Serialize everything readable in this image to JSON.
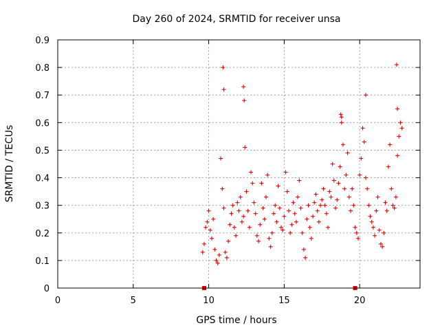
{
  "chart_data": {
    "type": "scatter",
    "title": "Day 260 of 2024, SRMTID for receiver unsa",
    "xlabel": "GPS time / hours",
    "ylabel": "SRMTID / TECUs",
    "xlim": [
      0,
      24
    ],
    "ylim": [
      0,
      0.9
    ],
    "xticks": [
      0,
      5,
      10,
      15,
      20
    ],
    "yticks": [
      0,
      0.1,
      0.2,
      0.3,
      0.4,
      0.5,
      0.6,
      0.7,
      0.8,
      0.9
    ],
    "xtick_labels": [
      "0",
      "5",
      "10",
      "15",
      "20"
    ],
    "ytick_labels": [
      "0",
      "0.1",
      "0.2",
      "0.3",
      "0.4",
      "0.5",
      "0.6",
      "0.7",
      "0.8",
      "0.9"
    ],
    "grid": true,
    "marker": "+",
    "series_color": "#e00000",
    "series": [
      {
        "name": "SRMTID",
        "x": [
          9.6,
          9.7,
          9.8,
          9.9,
          10.0,
          10.1,
          10.2,
          10.3,
          10.4,
          10.5,
          10.6,
          10.7,
          10.8,
          10.9,
          11.0,
          11.1,
          11.2,
          11.3,
          11.4,
          11.5,
          11.6,
          11.7,
          11.8,
          11.9,
          12.0,
          12.1,
          12.2,
          12.3,
          12.4,
          12.5,
          12.6,
          12.7,
          12.8,
          12.9,
          13.0,
          13.1,
          13.2,
          13.3,
          13.4,
          13.5,
          13.6,
          13.7,
          13.8,
          13.9,
          14.0,
          14.1,
          14.2,
          14.3,
          14.4,
          14.5,
          14.6,
          14.7,
          14.8,
          14.9,
          15.0,
          15.1,
          15.2,
          15.3,
          15.4,
          15.5,
          15.6,
          15.7,
          15.8,
          15.9,
          16.0,
          16.1,
          16.2,
          16.3,
          16.4,
          16.5,
          16.6,
          16.7,
          16.8,
          16.9,
          17.0,
          17.1,
          17.2,
          17.3,
          17.4,
          17.5,
          17.6,
          17.7,
          17.8,
          17.9,
          18.0,
          18.1,
          18.2,
          18.3,
          18.4,
          18.5,
          18.6,
          18.7,
          18.8,
          18.9,
          19.0,
          19.1,
          19.2,
          19.3,
          19.4,
          19.5,
          19.6,
          19.7,
          19.8,
          19.9,
          20.0,
          20.1,
          20.2,
          20.3,
          20.4,
          20.5,
          20.6,
          20.7,
          20.8,
          20.9,
          21.0,
          21.1,
          21.2,
          21.3,
          21.4,
          21.5,
          21.6,
          21.7,
          21.8,
          21.9,
          22.0,
          22.1,
          22.2,
          22.3,
          22.4,
          22.5,
          22.6,
          22.7,
          22.8,
          10.95,
          11.0,
          12.3,
          12.35,
          18.75,
          18.8,
          20.4,
          22.45,
          22.5
        ],
        "y": [
          0.13,
          0.16,
          0.22,
          0.24,
          0.28,
          0.21,
          0.18,
          0.25,
          0.14,
          0.1,
          0.09,
          0.12,
          0.47,
          0.36,
          0.29,
          0.13,
          0.11,
          0.17,
          0.23,
          0.27,
          0.3,
          0.22,
          0.19,
          0.31,
          0.28,
          0.33,
          0.24,
          0.26,
          0.51,
          0.35,
          0.28,
          0.22,
          0.42,
          0.38,
          0.31,
          0.27,
          0.19,
          0.17,
          0.23,
          0.38,
          0.29,
          0.25,
          0.33,
          0.41,
          0.18,
          0.15,
          0.2,
          0.27,
          0.3,
          0.24,
          0.37,
          0.29,
          0.22,
          0.21,
          0.26,
          0.42,
          0.35,
          0.28,
          0.2,
          0.23,
          0.31,
          0.27,
          0.24,
          0.33,
          0.39,
          0.29,
          0.2,
          0.14,
          0.11,
          0.25,
          0.3,
          0.22,
          0.18,
          0.26,
          0.31,
          0.34,
          0.28,
          0.24,
          0.3,
          0.32,
          0.36,
          0.3,
          0.27,
          0.22,
          0.35,
          0.33,
          0.45,
          0.39,
          0.29,
          0.32,
          0.38,
          0.44,
          0.62,
          0.52,
          0.36,
          0.41,
          0.49,
          0.33,
          0.28,
          0.36,
          0.3,
          0.22,
          0.2,
          0.18,
          0.41,
          0.47,
          0.58,
          0.53,
          0.4,
          0.36,
          0.3,
          0.26,
          0.24,
          0.22,
          0.19,
          0.28,
          0.33,
          0.21,
          0.16,
          0.15,
          0.2,
          0.31,
          0.28,
          0.44,
          0.52,
          0.36,
          0.3,
          0.29,
          0.33,
          0.48,
          0.55,
          0.6,
          0.58,
          0.8,
          0.72,
          0.73,
          0.68,
          0.63,
          0.6,
          0.7,
          0.81,
          0.65
        ]
      }
    ],
    "markers_at_zero": [
      9.7,
      19.7
    ]
  }
}
